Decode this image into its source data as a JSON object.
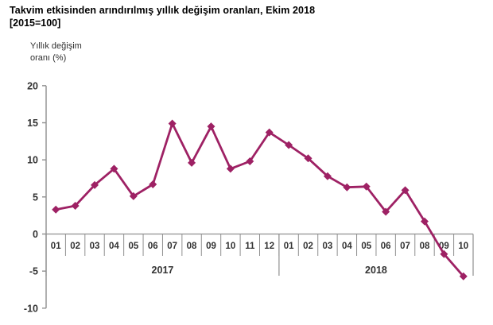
{
  "title": "Takvim etkisinden arındırılmış yıllık değişim oranları, Ekim 2018",
  "subtitle": "[2015=100]",
  "y_axis_title": {
    "line1": "Yıllık değişim",
    "line2": "oranı (%)"
  },
  "chart_data": {
    "type": "line",
    "title": "Takvim etkisinden arındırılmış yıllık değişim oranları, Ekim 2018 [2015=100]",
    "ylabel": "Yıllık değişim oranı (%)",
    "ylim": [
      -10,
      20
    ],
    "yticks": [
      20,
      15,
      10,
      5,
      0,
      -5,
      -10
    ],
    "grid": false,
    "legend": false,
    "line_color": "#9E2164",
    "marker": "diamond",
    "axis_color": "#8f8f8f",
    "label_color": "#333333",
    "groups": [
      {
        "year": "2017",
        "months": [
          "01",
          "02",
          "03",
          "04",
          "05",
          "06",
          "07",
          "08",
          "09",
          "10",
          "11",
          "12"
        ],
        "values": [
          3.3,
          3.8,
          6.6,
          8.8,
          5.1,
          6.7,
          14.9,
          9.6,
          14.5,
          8.8,
          9.8,
          13.7
        ]
      },
      {
        "year": "2018",
        "months": [
          "01",
          "02",
          "03",
          "04",
          "05",
          "06",
          "07",
          "08",
          "09",
          "10"
        ],
        "values": [
          12.0,
          10.2,
          7.8,
          6.3,
          6.4,
          3.0,
          5.9,
          1.7,
          -2.7,
          -5.7
        ]
      }
    ],
    "categories": [
      "2017-01",
      "2017-02",
      "2017-03",
      "2017-04",
      "2017-05",
      "2017-06",
      "2017-07",
      "2017-08",
      "2017-09",
      "2017-10",
      "2017-11",
      "2017-12",
      "2018-01",
      "2018-02",
      "2018-03",
      "2018-04",
      "2018-05",
      "2018-06",
      "2018-07",
      "2018-08",
      "2018-09",
      "2018-10"
    ],
    "values": [
      3.3,
      3.8,
      6.6,
      8.8,
      5.1,
      6.7,
      14.9,
      9.6,
      14.5,
      8.8,
      9.8,
      13.7,
      12.0,
      10.2,
      7.8,
      6.3,
      6.4,
      3.0,
      5.9,
      1.7,
      -2.7,
      -5.7
    ]
  }
}
